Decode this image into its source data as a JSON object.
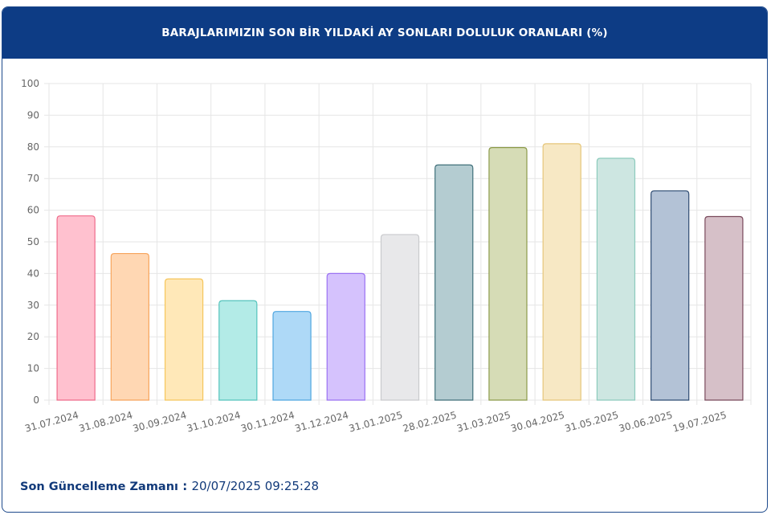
{
  "header": {
    "title": "BARAJLARIMIZIN SON BİR YILDAKİ AY SONLARI DOLULUK ORANLARI (%)"
  },
  "footer": {
    "label": "Son Güncelleme Zamanı",
    "separator": " : ",
    "value": "20/07/2025 09:25:28"
  },
  "chart_data": {
    "type": "bar",
    "title": "BARAJLARIMIZIN SON BİR YILDAKİ AY SONLARI DOLULUK ORANLARI (%)",
    "xlabel": "",
    "ylabel": "",
    "ylim": [
      0,
      100
    ],
    "yticks": [
      "0",
      "10",
      "20",
      "30",
      "40",
      "50",
      "60",
      "70",
      "80",
      "90",
      "100"
    ],
    "grid": true,
    "legend": "none",
    "categories": [
      "31.07.2024",
      "31.08.2024",
      "30.09.2024",
      "31.10.2024",
      "30.11.2024",
      "31.12.2024",
      "31.01.2025",
      "28.02.2025",
      "31.03.2025",
      "30.04.2025",
      "31.05.2025",
      "30.06.2025",
      "19.07.2025"
    ],
    "values": [
      58.2,
      46.3,
      38.3,
      31.4,
      28.0,
      40.0,
      52.3,
      74.3,
      79.8,
      81.0,
      76.4,
      66.1,
      58.0
    ],
    "colors": [
      {
        "fill": "#ffc1cf",
        "stroke": "#ef6b8a"
      },
      {
        "fill": "#ffd7b3",
        "stroke": "#f7a45c"
      },
      {
        "fill": "#ffe8b8",
        "stroke": "#f5c65c"
      },
      {
        "fill": "#b3ebe7",
        "stroke": "#55c4bc"
      },
      {
        "fill": "#aed9f7",
        "stroke": "#4fa6e0"
      },
      {
        "fill": "#d5c2fd",
        "stroke": "#9b72f2"
      },
      {
        "fill": "#e8e8ea",
        "stroke": "#c9cacd"
      },
      {
        "fill": "#b4ccd1",
        "stroke": "#40707a"
      },
      {
        "fill": "#d6dcb6",
        "stroke": "#8c9a4a"
      },
      {
        "fill": "#f7e8c4",
        "stroke": "#e6c67a"
      },
      {
        "fill": "#cde6e1",
        "stroke": "#8ccbbc"
      },
      {
        "fill": "#b3c2d6",
        "stroke": "#2f4d73"
      },
      {
        "fill": "#d6c0c8",
        "stroke": "#7a4a5c"
      }
    ]
  }
}
